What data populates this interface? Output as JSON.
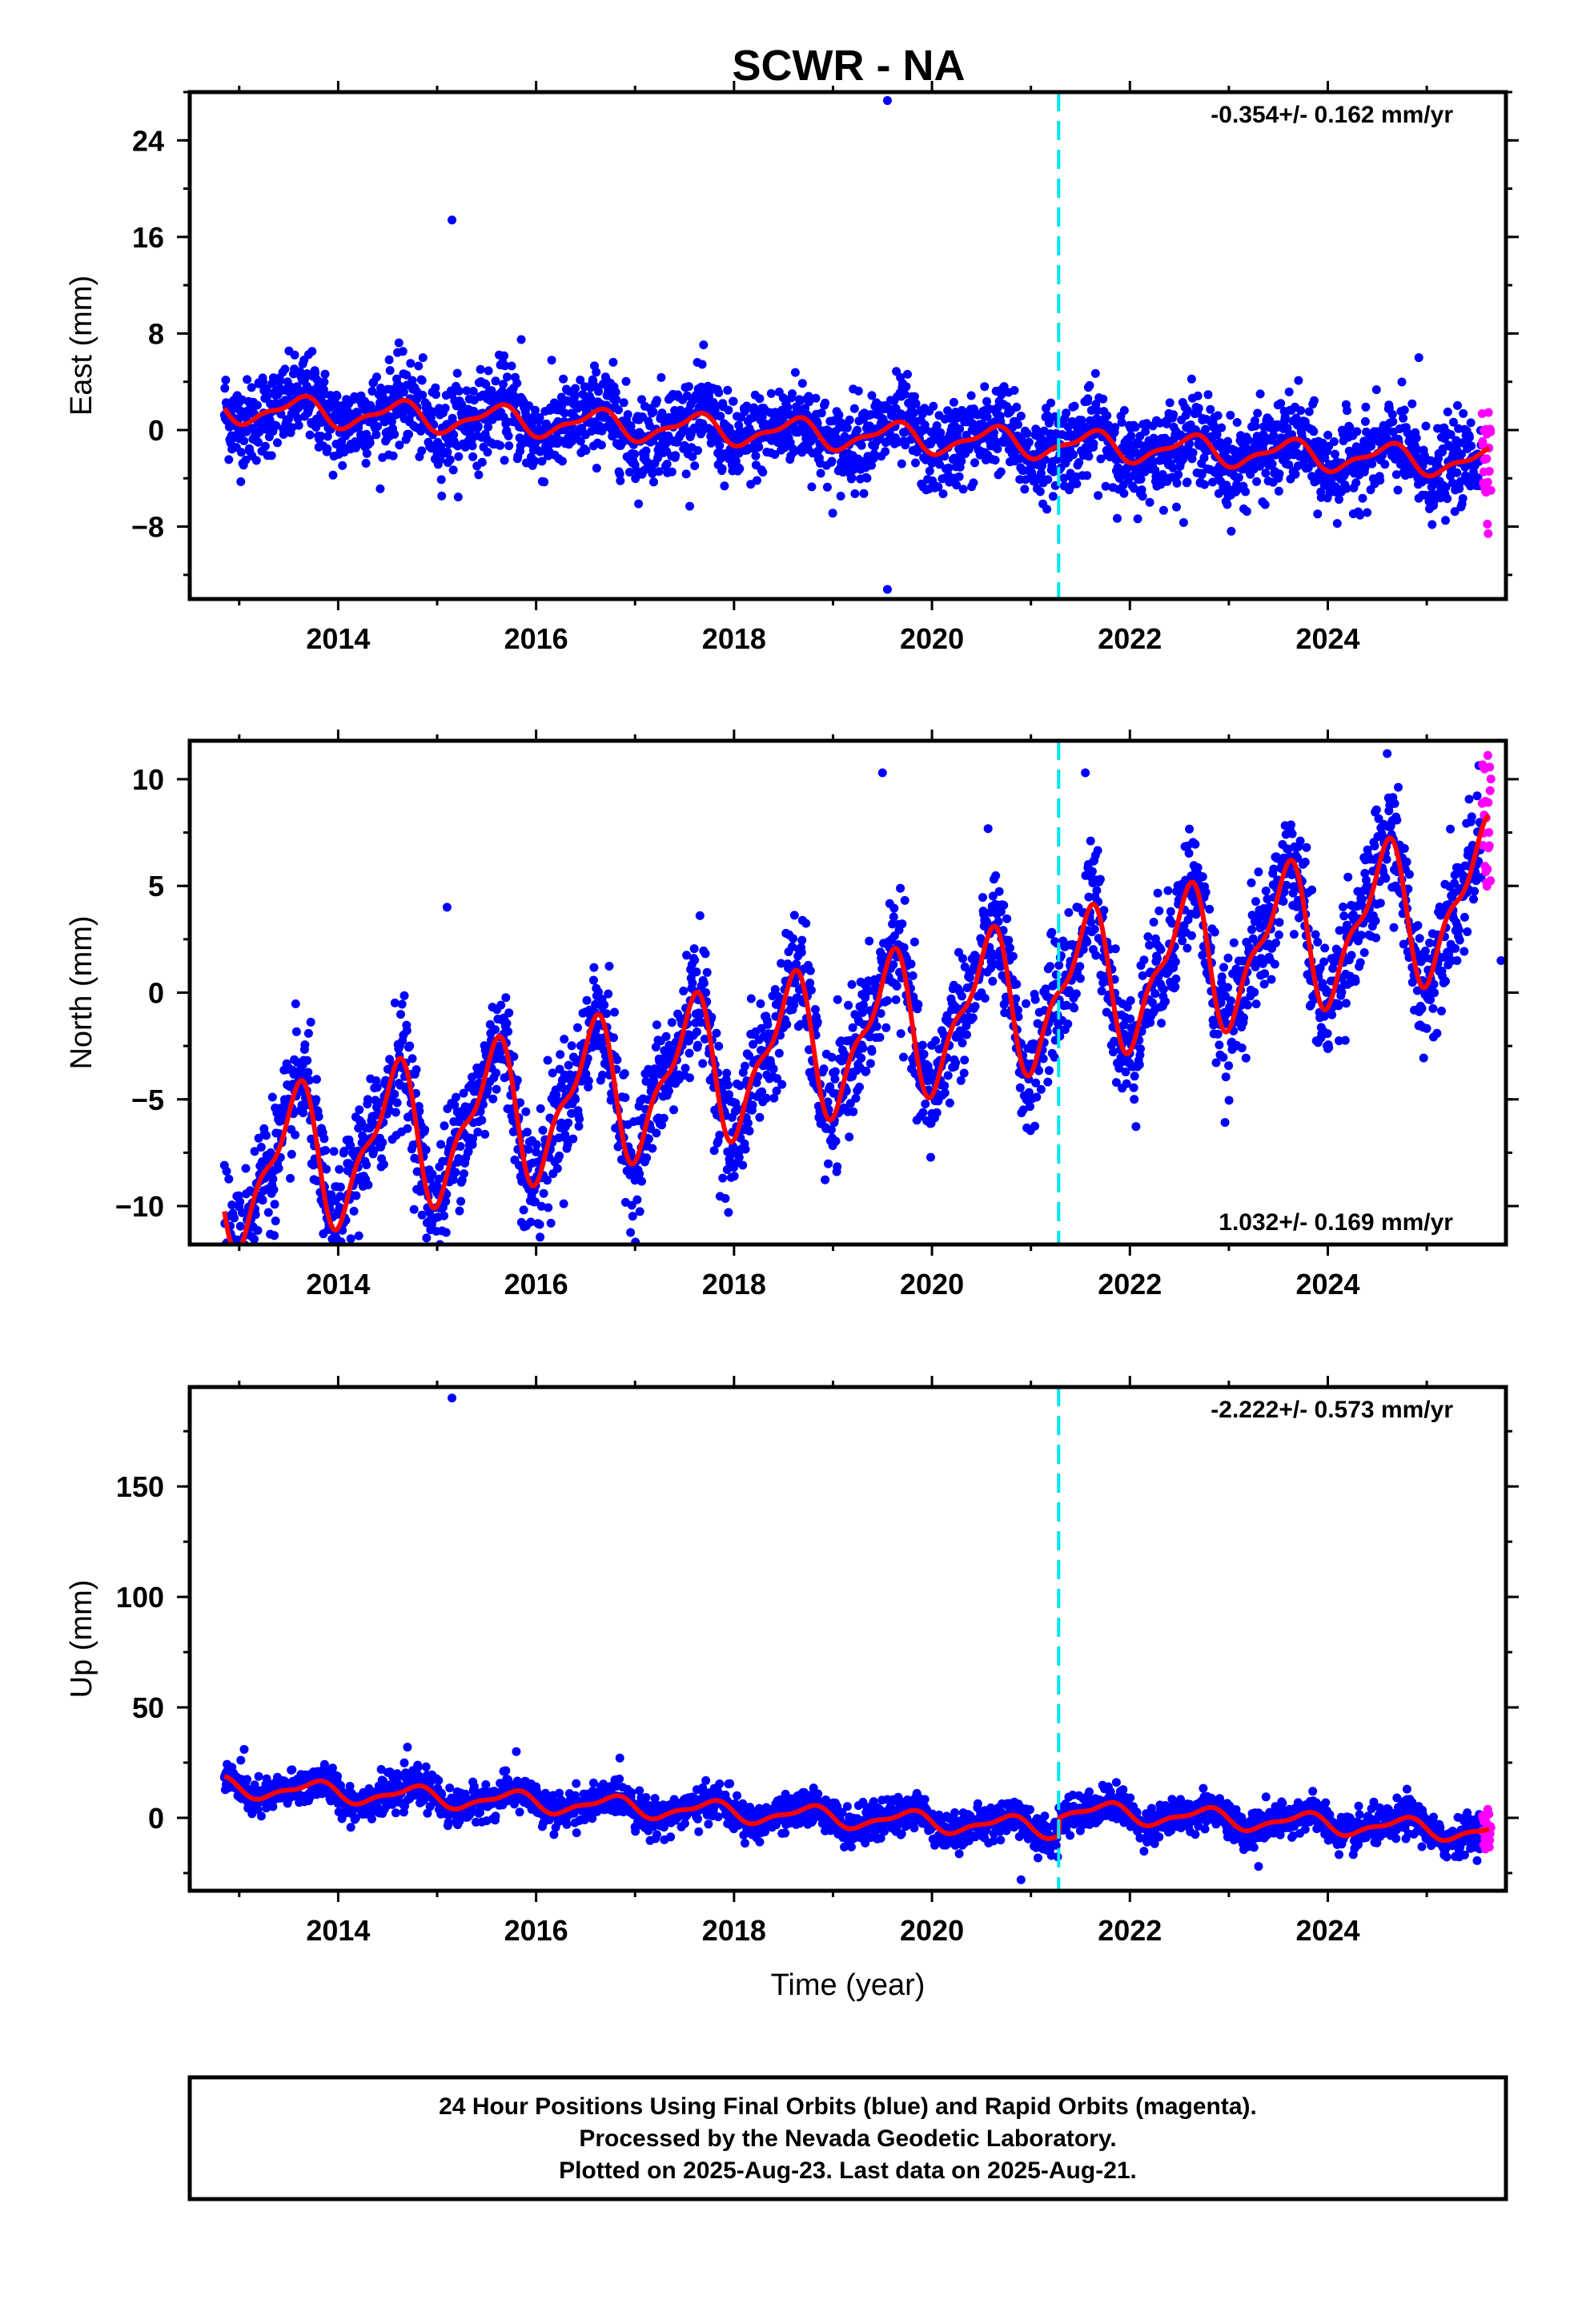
{
  "chart_data": [
    {
      "type": "scatter",
      "panel": "east",
      "title": "SCWR - NA",
      "ylabel": "East (mm)",
      "xlabel": "",
      "xlim": [
        2012.5,
        2025.8
      ],
      "ylim": [
        -14,
        28
      ],
      "xticks": [
        2014,
        2016,
        2018,
        2020,
        2022,
        2024
      ],
      "yticks": [
        -8,
        0,
        8,
        16,
        24
      ],
      "ytick_labels": [
        "−8",
        "0",
        "8",
        "16",
        "24"
      ],
      "rate_text": "-0.354+/- 0.162 mm/yr",
      "rate_position": "top-right",
      "step_epoch": 2021.28,
      "trend": {
        "start_value": 1.8,
        "rate": -0.354,
        "seasonal_amplitude": 1.2,
        "seasonal_phase_year": 0.6,
        "scatter_sd": 1.8,
        "offset_at_step": 0.0
      },
      "outliers": [
        [
          2015.15,
          17.4
        ],
        [
          2019.55,
          27.3
        ],
        [
          2019.55,
          -13.2
        ],
        [
          2024.92,
          6.0
        ],
        [
          2015.85,
          7.5
        ]
      ],
      "series": [
        {
          "name": "Final Orbits",
          "color": "#0000ff"
        },
        {
          "name": "Rapid Orbits",
          "color": "#ff00ff"
        },
        {
          "name": "Model fit",
          "color": "#ff0000"
        }
      ]
    },
    {
      "type": "scatter",
      "panel": "north",
      "title": "",
      "ylabel": "North (mm)",
      "xlabel": "",
      "xlim": [
        2012.5,
        2025.8
      ],
      "ylim": [
        -11.8,
        11.8
      ],
      "xticks": [
        2014,
        2016,
        2018,
        2020,
        2022,
        2024
      ],
      "yticks": [
        -10,
        -5,
        0,
        5,
        10
      ],
      "ytick_labels": [
        "−10",
        "−5",
        "0",
        "5",
        "10"
      ],
      "rate_text": "1.032+/- 0.169 mm/yr",
      "rate_position": "bottom-right",
      "step_epoch": 2021.28,
      "trend": {
        "start_value": -8.6,
        "rate": 1.032,
        "seasonal_amplitude": 3.4,
        "seasonal_phase_year": 0.55,
        "scatter_sd": 1.4,
        "offset_at_step": 0.0
      },
      "outliers": [
        [
          2019.5,
          10.3
        ],
        [
          2021.55,
          10.3
        ],
        [
          2016.15,
          -10.8
        ],
        [
          2015.1,
          4.0
        ],
        [
          2024.6,
          11.2
        ],
        [
          2013.85,
          -11.3
        ],
        [
          2025.75,
          1.5
        ]
      ],
      "series": [
        {
          "name": "Final Orbits",
          "color": "#0000ff"
        },
        {
          "name": "Rapid Orbits",
          "color": "#ff00ff"
        },
        {
          "name": "Model fit",
          "color": "#ff0000"
        }
      ]
    },
    {
      "type": "scatter",
      "panel": "up",
      "title": "",
      "ylabel": "Up (mm)",
      "xlabel": "Time (year)",
      "xlim": [
        2012.5,
        2025.8
      ],
      "ylim": [
        -33,
        195
      ],
      "xticks": [
        2014,
        2016,
        2018,
        2020,
        2022,
        2024
      ],
      "yticks": [
        0,
        50,
        100,
        150
      ],
      "ytick_labels": [
        "0",
        "50",
        "100",
        "150"
      ],
      "rate_text": "-2.222+/- 0.573 mm/yr",
      "rate_position": "top-right",
      "step_epoch": 2021.28,
      "trend": {
        "start_value": 14,
        "rate": -2.222,
        "seasonal_amplitude": 4.5,
        "seasonal_phase_year": 0.75,
        "scatter_sd": 4.0,
        "offset_at_step": 8.0
      },
      "outliers": [
        [
          2015.15,
          190
        ],
        [
          2014.7,
          32
        ],
        [
          2013.05,
          31
        ],
        [
          2015.8,
          30
        ],
        [
          2024.8,
          13
        ],
        [
          2020.9,
          -28
        ],
        [
          2023.3,
          -22
        ]
      ],
      "series": [
        {
          "name": "Final Orbits",
          "color": "#0000ff"
        },
        {
          "name": "Rapid Orbits",
          "color": "#ff00ff"
        },
        {
          "name": "Model fit",
          "color": "#ff0000"
        }
      ]
    }
  ],
  "colors": {
    "final": "#0000ff",
    "rapid": "#ff00ff",
    "fit": "#ff0000",
    "step": "#00e5ee"
  },
  "footer": {
    "line1": "24 Hour Positions Using Final Orbits (blue) and Rapid Orbits (magenta).",
    "line2": "Processed by the Nevada Geodetic Laboratory.",
    "line3": "Plotted on 2025-Aug-23. Last data on 2025-Aug-21."
  }
}
